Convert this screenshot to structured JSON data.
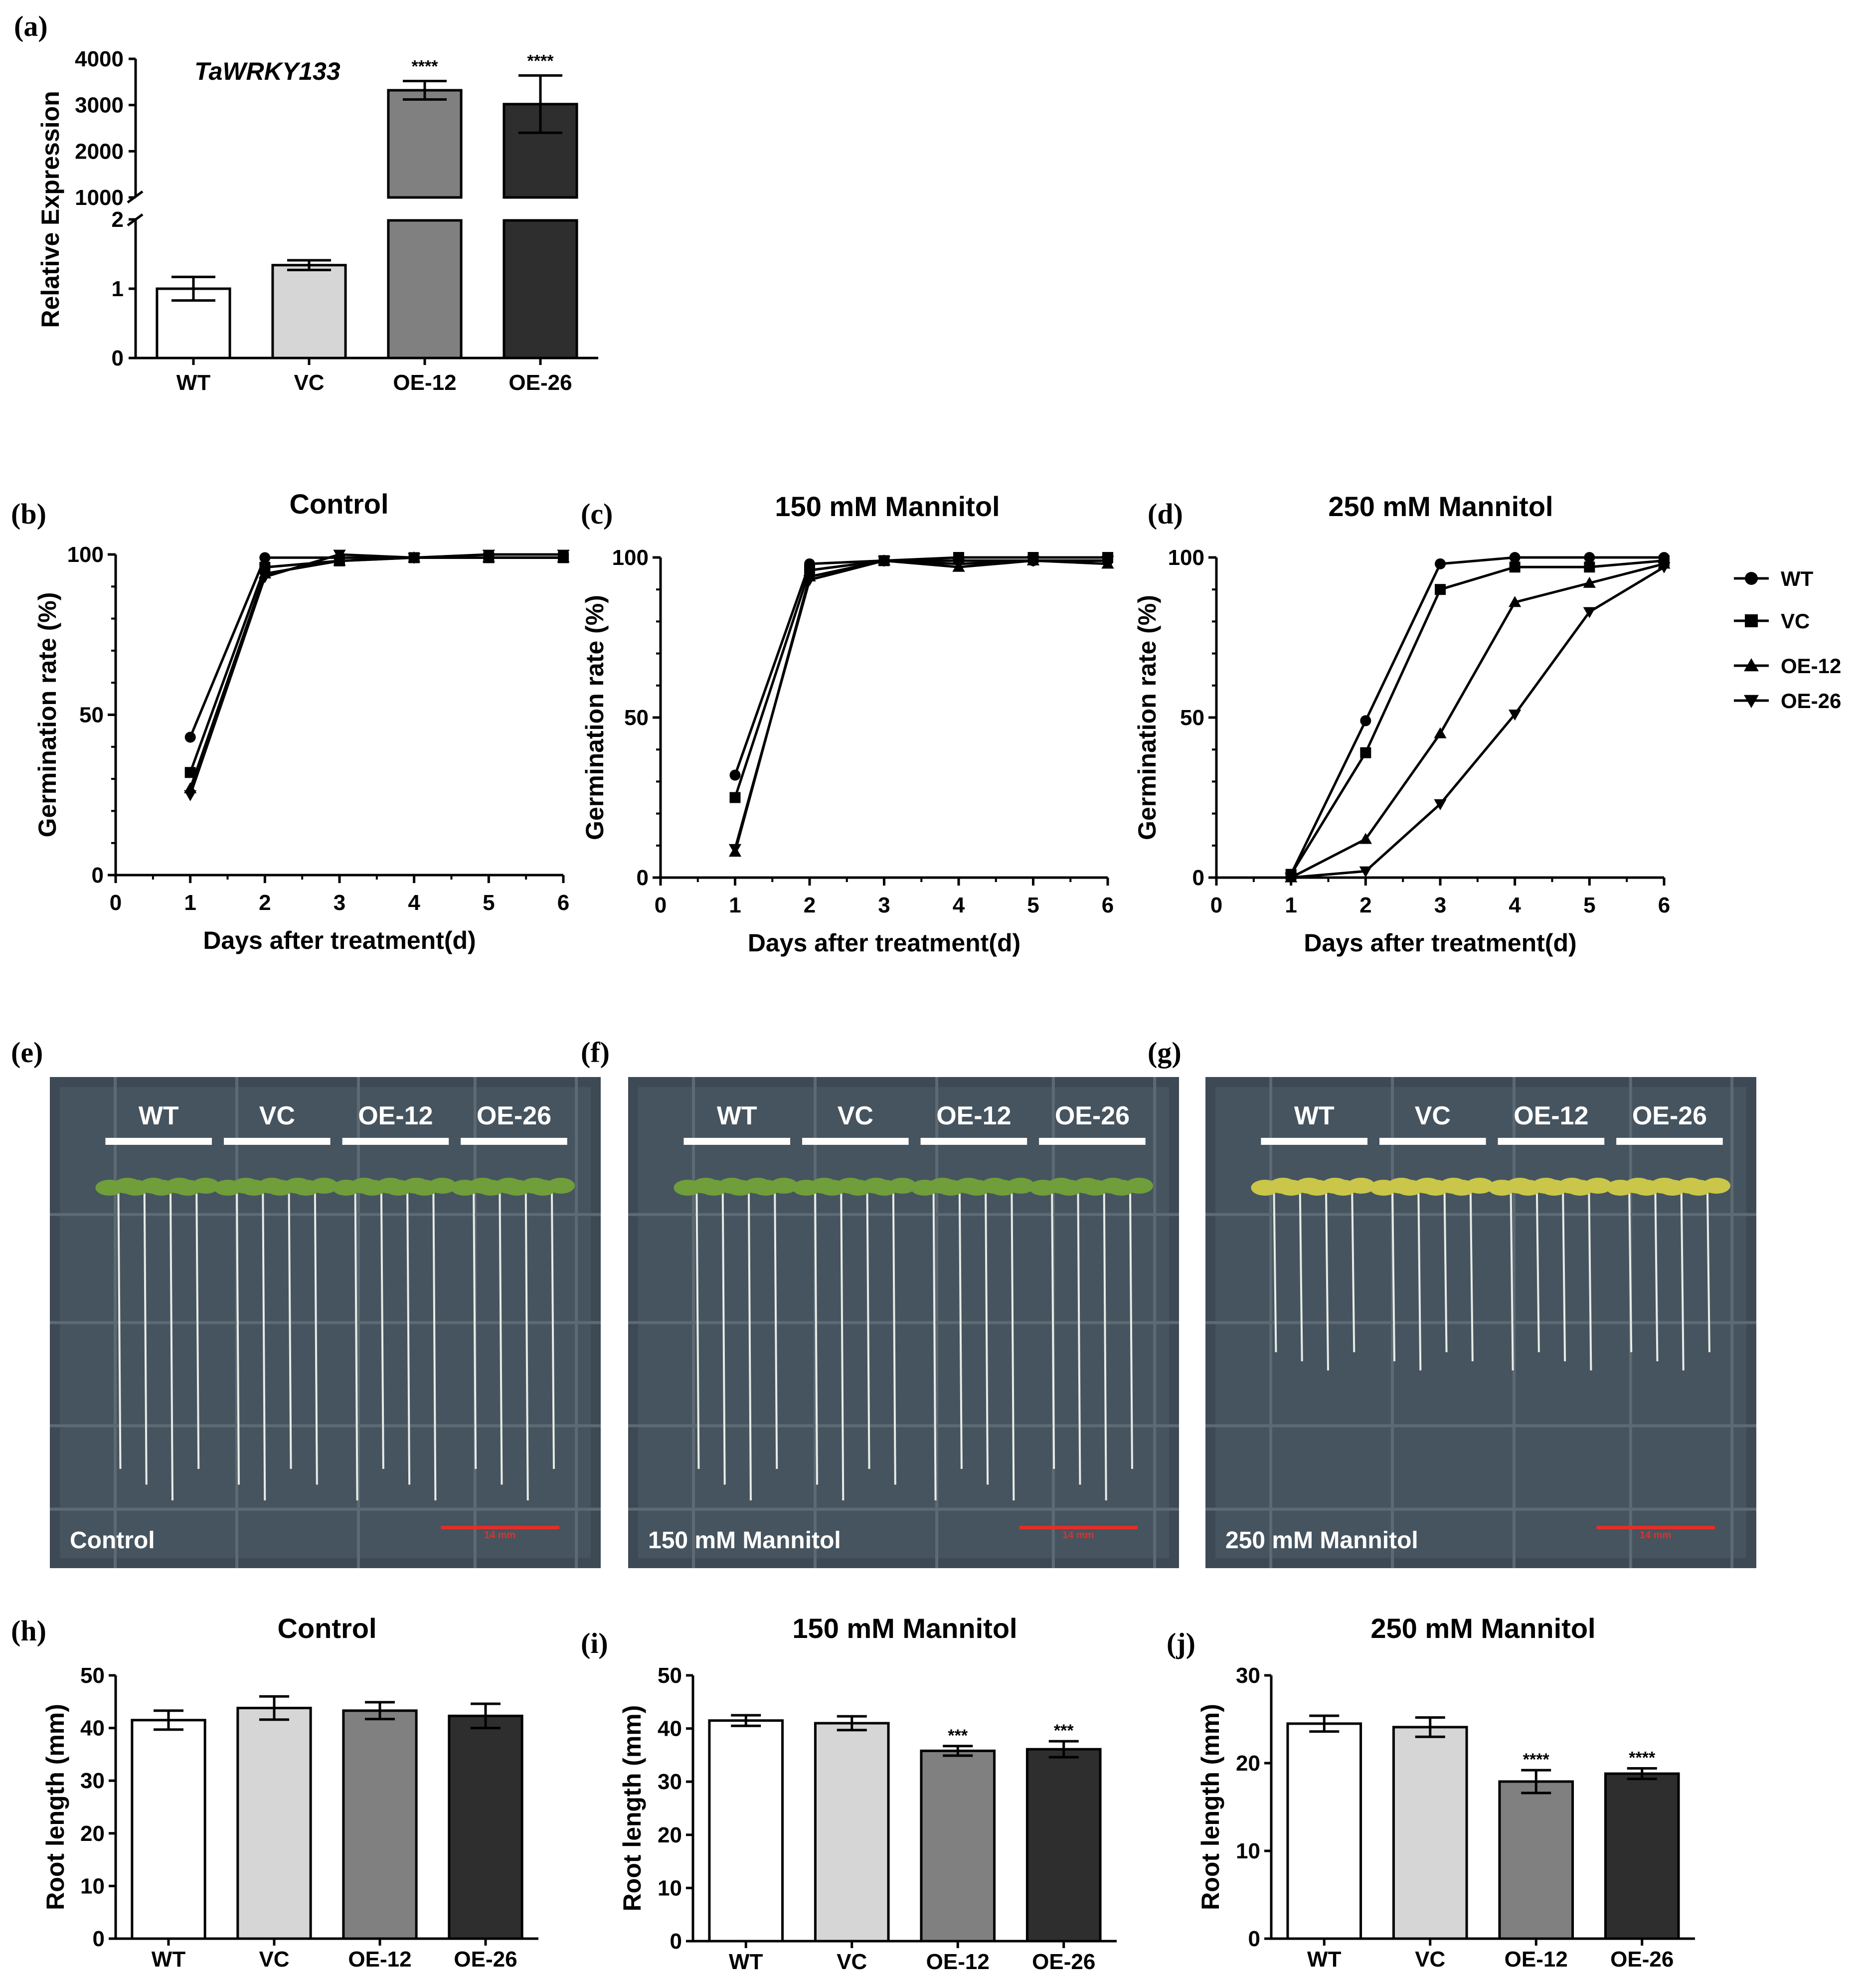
{
  "panel_labels": [
    "(a)",
    "(b)",
    "(c)",
    "(d)",
    "(e)",
    "(f)",
    "(g)",
    "(h)",
    "(i)",
    "(j)"
  ],
  "colors": {
    "WT": "#ffffff",
    "VC": "#d6d6d6",
    "OE-12": "#808080",
    "OE-26": "#2e2e2e",
    "scale_bar": "#e0302a"
  },
  "chart_data": [
    {
      "id": "a",
      "type": "bar",
      "title": "TaWRKY133",
      "ylabel": "Relative Expression",
      "xlabel": "",
      "categories": [
        "WT",
        "VC",
        "OE-12",
        "OE-26"
      ],
      "values": [
        1.0,
        1.34,
        3320,
        3020
      ],
      "errors": [
        0.17,
        0.07,
        200,
        620
      ],
      "significance": [
        "",
        "",
        "****",
        "****"
      ],
      "broken_axis": {
        "lower": {
          "range": [
            0,
            2
          ],
          "ticks": [
            "0",
            "1",
            "2"
          ]
        },
        "upper": {
          "range": [
            1000,
            4000
          ],
          "ticks": [
            "1000",
            "2000",
            "3000",
            "4000"
          ]
        }
      }
    },
    {
      "id": "b",
      "type": "line",
      "title": "Control",
      "xlabel": "Days after treatment(d)",
      "ylabel": "Germination rate (%)",
      "x": [
        1,
        2,
        3,
        4,
        5,
        6
      ],
      "xticks": [
        "0",
        "1",
        "2",
        "3",
        "4",
        "5",
        "6"
      ],
      "yticks": [
        "0",
        "50",
        "100"
      ],
      "xlim": [
        0,
        6
      ],
      "ylim": [
        0,
        100
      ],
      "series": [
        {
          "name": "WT",
          "marker": "circle",
          "values": [
            43,
            99,
            99,
            99,
            99,
            99
          ]
        },
        {
          "name": "VC",
          "marker": "square",
          "values": [
            32,
            96,
            98,
            99,
            99,
            99
          ]
        },
        {
          "name": "OE-12",
          "marker": "triangle-up",
          "values": [
            27,
            94,
            98,
            99,
            99,
            99
          ]
        },
        {
          "name": "OE-26",
          "marker": "triangle-down",
          "values": [
            25,
            93,
            100,
            99,
            100,
            100
          ]
        }
      ]
    },
    {
      "id": "c",
      "type": "line",
      "title": "150 mM Mannitol",
      "xlabel": "Days after treatment(d)",
      "ylabel": "Germination rate (%)",
      "x": [
        1,
        2,
        3,
        4,
        5,
        6
      ],
      "xticks": [
        "0",
        "1",
        "2",
        "3",
        "4",
        "5",
        "6"
      ],
      "yticks": [
        "0",
        "50",
        "100"
      ],
      "xlim": [
        0,
        6
      ],
      "ylim": [
        0,
        100
      ],
      "series": [
        {
          "name": "WT",
          "marker": "circle",
          "values": [
            32,
            98,
            99,
            99,
            99,
            99
          ]
        },
        {
          "name": "VC",
          "marker": "square",
          "values": [
            25,
            96,
            99,
            100,
            100,
            100
          ]
        },
        {
          "name": "OE-12",
          "marker": "triangle-up",
          "values": [
            8,
            94,
            99,
            97,
            99,
            98
          ]
        },
        {
          "name": "OE-26",
          "marker": "triangle-down",
          "values": [
            9,
            93,
            99,
            98,
            99,
            99
          ]
        }
      ]
    },
    {
      "id": "d",
      "type": "line",
      "title": "250 mM Mannitol",
      "xlabel": "Days after treatment(d)",
      "ylabel": "Germination rate (%)",
      "x": [
        1,
        2,
        3,
        4,
        5,
        6
      ],
      "xticks": [
        "0",
        "1",
        "2",
        "3",
        "4",
        "5",
        "6"
      ],
      "yticks": [
        "0",
        "50",
        "100"
      ],
      "xlim": [
        0,
        6
      ],
      "ylim": [
        0,
        100
      ],
      "series": [
        {
          "name": "WT",
          "marker": "circle",
          "values": [
            1,
            49,
            98,
            100,
            100,
            100
          ]
        },
        {
          "name": "VC",
          "marker": "square",
          "values": [
            1,
            39,
            90,
            97,
            97,
            99
          ]
        },
        {
          "name": "OE-12",
          "marker": "triangle-up",
          "values": [
            0,
            12,
            45,
            86,
            92,
            98
          ]
        },
        {
          "name": "OE-26",
          "marker": "triangle-down",
          "values": [
            0,
            2,
            23,
            51,
            83,
            97
          ]
        }
      ]
    },
    {
      "id": "h",
      "type": "bar",
      "title": "Control",
      "ylabel": "Root length (mm)",
      "xlabel": "",
      "categories": [
        "WT",
        "VC",
        "OE-12",
        "OE-26"
      ],
      "values": [
        41.5,
        43.8,
        43.3,
        42.3
      ],
      "errors": [
        1.8,
        2.2,
        1.6,
        2.3
      ],
      "significance": [
        "",
        "",
        "",
        ""
      ],
      "yticks": [
        "0",
        "10",
        "20",
        "30",
        "40",
        "50"
      ],
      "ylim": [
        0,
        50
      ]
    },
    {
      "id": "i",
      "type": "bar",
      "title": "150 mM Mannitol",
      "ylabel": "Root length (mm)",
      "xlabel": "",
      "categories": [
        "WT",
        "VC",
        "OE-12",
        "OE-26"
      ],
      "values": [
        41.5,
        41.0,
        35.8,
        36.1
      ],
      "errors": [
        1.0,
        1.3,
        0.9,
        1.5
      ],
      "significance": [
        "",
        "",
        "***",
        "***"
      ],
      "yticks": [
        "0",
        "10",
        "20",
        "30",
        "40",
        "50"
      ],
      "ylim": [
        0,
        50
      ]
    },
    {
      "id": "j",
      "type": "bar",
      "title": "250 mM Mannitol",
      "ylabel": "Root length (mm)",
      "xlabel": "",
      "categories": [
        "WT",
        "VC",
        "OE-12",
        "OE-26"
      ],
      "values": [
        24.5,
        24.1,
        17.9,
        18.8
      ],
      "errors": [
        0.9,
        1.1,
        1.3,
        0.6
      ],
      "significance": [
        "",
        "",
        "****",
        "****"
      ],
      "yticks": [
        "0",
        "10",
        "20",
        "30"
      ],
      "ylim": [
        0,
        30
      ]
    }
  ],
  "legend": [
    {
      "name": "WT",
      "marker": "circle"
    },
    {
      "name": "VC",
      "marker": "square"
    },
    {
      "name": "OE-12",
      "marker": "triangle-up"
    },
    {
      "name": "OE-26",
      "marker": "triangle-down"
    }
  ],
  "photos": [
    {
      "id": "e",
      "condition": "Control",
      "groups": [
        "WT",
        "VC",
        "OE-12",
        "OE-26"
      ],
      "scale_bar": "14 mm",
      "seedling_color": "#6f9e3a",
      "root_fraction": 0.95
    },
    {
      "id": "f",
      "condition": "150 mM Mannitol",
      "groups": [
        "WT",
        "VC",
        "OE-12",
        "OE-26"
      ],
      "scale_bar": "14 mm",
      "seedling_color": "#6f9e3a",
      "root_fraction": 0.95
    },
    {
      "id": "g",
      "condition": "250 mM Mannitol",
      "groups": [
        "WT",
        "VC",
        "OE-12",
        "OE-26"
      ],
      "scale_bar": "14 mm",
      "seedling_color": "#c9c64a",
      "root_fraction": 0.55
    }
  ]
}
